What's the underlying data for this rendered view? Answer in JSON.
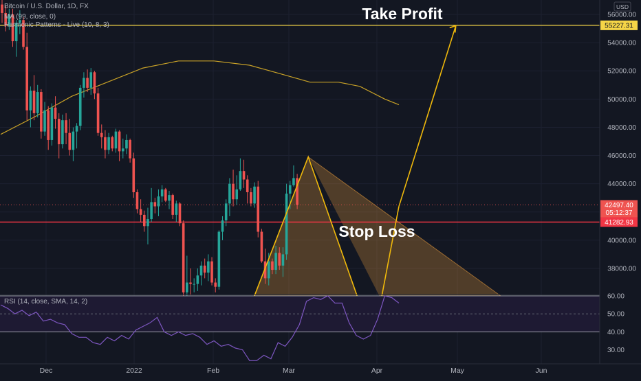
{
  "chart_data": {
    "type": "candlestick",
    "title": "Bitcoin / U.S. Dollar, 1D, FX",
    "indicators": [
      "MA (99, close, 0)",
      "Harmonic Patterns - Live (10, 8, 3)"
    ],
    "currency": "USD",
    "price_axis": {
      "ticks": [
        "56000.00",
        "54000.00",
        "52000.00",
        "50000.00",
        "48000.00",
        "46000.00",
        "44000.00",
        "42000.00",
        "40000.00",
        "38000.00"
      ],
      "range": [
        36200,
        57000
      ]
    },
    "time_axis": {
      "ticks": [
        "Dec",
        "2022",
        "Feb",
        "Mar",
        "Apr",
        "May",
        "Jun"
      ]
    },
    "price_labels": {
      "take_profit_value": "55227.31",
      "last_price": "42497.40",
      "countdown": "05:12:37",
      "stop_loss_value": "41282.93"
    },
    "levels": {
      "take_profit": 55227.31,
      "stop_loss": 41282.93,
      "last": 42497.4
    },
    "annotations": {
      "take_profit": "Take Profit",
      "stop_loss": "Stop Loss"
    },
    "candles": [
      [
        56700,
        57100,
        55400,
        56100
      ],
      [
        56100,
        56600,
        54800,
        55200
      ],
      [
        55200,
        56400,
        54900,
        56000
      ],
      [
        56000,
        56400,
        53700,
        54100
      ],
      [
        54100,
        55600,
        53000,
        55400
      ],
      [
        55400,
        56300,
        54600,
        55600
      ],
      [
        55600,
        55800,
        53500,
        53700
      ],
      [
        53700,
        54700,
        48500,
        49200
      ],
      [
        49200,
        50900,
        48000,
        50600
      ],
      [
        50600,
        51700,
        48500,
        49000
      ],
      [
        49000,
        51000,
        48700,
        50500
      ],
      [
        50500,
        50700,
        47200,
        47700
      ],
      [
        47700,
        49800,
        47400,
        49200
      ],
      [
        49200,
        49500,
        46400,
        47100
      ],
      [
        47100,
        49700,
        46700,
        49400
      ],
      [
        49400,
        50200,
        47900,
        48600
      ],
      [
        48600,
        49000,
        45800,
        46800
      ],
      [
        46800,
        48900,
        46500,
        48500
      ],
      [
        48500,
        49000,
        46800,
        47600
      ],
      [
        47600,
        48600,
        46000,
        46400
      ],
      [
        46400,
        48000,
        45600,
        47700
      ],
      [
        47700,
        48300,
        46500,
        48100
      ],
      [
        48100,
        51000,
        47800,
        50800
      ],
      [
        50800,
        51900,
        50100,
        51500
      ],
      [
        51500,
        52100,
        50500,
        50800
      ],
      [
        50800,
        52200,
        50300,
        51900
      ],
      [
        51900,
        52000,
        50000,
        50400
      ],
      [
        50400,
        50800,
        47400,
        47600
      ],
      [
        47600,
        48200,
        46500,
        47300
      ],
      [
        47300,
        47800,
        45800,
        46400
      ],
      [
        46400,
        47600,
        46100,
        47300
      ],
      [
        47300,
        47400,
        46300,
        46500
      ],
      [
        46500,
        47900,
        46200,
        47700
      ],
      [
        47700,
        47800,
        45600,
        46300
      ],
      [
        46300,
        47200,
        45800,
        46500
      ],
      [
        46500,
        47500,
        46100,
        47100
      ],
      [
        47100,
        47200,
        45500,
        45800
      ],
      [
        45800,
        46200,
        43000,
        43400
      ],
      [
        43400,
        43600,
        41900,
        42200
      ],
      [
        42200,
        42900,
        41300,
        41800
      ],
      [
        41800,
        42100,
        40600,
        41000
      ],
      [
        41000,
        42300,
        39700,
        41500
      ],
      [
        41500,
        43700,
        41300,
        42700
      ],
      [
        42700,
        43000,
        41900,
        42400
      ],
      [
        42400,
        43600,
        41700,
        43100
      ],
      [
        43100,
        43900,
        42700,
        43600
      ],
      [
        43600,
        43700,
        42700,
        42800
      ],
      [
        42800,
        43500,
        42200,
        43200
      ],
      [
        43200,
        43300,
        41500,
        41800
      ],
      [
        41800,
        42800,
        41300,
        42600
      ],
      [
        42600,
        42700,
        41000,
        41200
      ],
      [
        41200,
        41400,
        35700,
        36300
      ],
      [
        36300,
        38900,
        35800,
        37000
      ],
      [
        37000,
        38000,
        36100,
        36900
      ],
      [
        36900,
        37300,
        36300,
        36900
      ],
      [
        36900,
        38000,
        36400,
        37500
      ],
      [
        37500,
        38500,
        36800,
        38200
      ],
      [
        38200,
        38700,
        37300,
        37700
      ],
      [
        37700,
        39000,
        37100,
        38500
      ],
      [
        38500,
        38800,
        36800,
        37000
      ],
      [
        37000,
        37300,
        36300,
        36700
      ],
      [
        36700,
        40700,
        36500,
        40600
      ],
      [
        40600,
        41700,
        40000,
        41400
      ],
      [
        41400,
        42900,
        41000,
        42600
      ],
      [
        42600,
        44400,
        41700,
        44000
      ],
      [
        44000,
        45000,
        42400,
        42900
      ],
      [
        42900,
        44600,
        42500,
        43600
      ],
      [
        43600,
        45800,
        43500,
        44900
      ],
      [
        44900,
        45700,
        43700,
        44300
      ],
      [
        44300,
        44600,
        42600,
        43400
      ],
      [
        43400,
        43700,
        42400,
        42600
      ],
      [
        42600,
        44100,
        42300,
        43800
      ],
      [
        43800,
        44200,
        40200,
        40600
      ],
      [
        40600,
        40800,
        38400,
        38500
      ],
      [
        38500,
        39400,
        36900,
        37300
      ],
      [
        37300,
        39100,
        36800,
        38500
      ],
      [
        38500,
        38700,
        37600,
        37900
      ],
      [
        37900,
        39600,
        37600,
        39100
      ],
      [
        39100,
        39500,
        37900,
        38200
      ],
      [
        38200,
        39500,
        37400,
        39000
      ],
      [
        39000,
        44000,
        38600,
        43300
      ],
      [
        43300,
        44200,
        42200,
        43900
      ],
      [
        43900,
        45300,
        43800,
        44400
      ],
      [
        44400,
        44700,
        42200,
        42500
      ]
    ],
    "ma99": [
      [
        0,
        47500
      ],
      [
        10,
        48800
      ],
      [
        20,
        50200
      ],
      [
        30,
        51200
      ],
      [
        40,
        52200
      ],
      [
        50,
        52700
      ],
      [
        60,
        52700
      ],
      [
        70,
        52400
      ],
      [
        80,
        51700
      ],
      [
        87,
        51200
      ],
      [
        95,
        51200
      ],
      [
        101,
        50900
      ],
      [
        108,
        50000
      ],
      [
        112,
        49600
      ]
    ],
    "harmonic_pattern": {
      "points": [
        [
          70.5,
          35500
        ],
        [
          86.5,
          45900
        ],
        [
          101,
          35500
        ],
        [
          107,
          35800
        ],
        [
          112,
          42400
        ]
      ],
      "triangle_a": [
        [
          70.5,
          35500
        ],
        [
          86.5,
          45900
        ],
        [
          101,
          35500
        ]
      ],
      "triangle_b": [
        [
          86.5,
          45900
        ],
        [
          107,
          35800
        ],
        [
          142,
          35800
        ]
      ],
      "projection": [
        [
          112,
          42400
        ],
        [
          128,
          55200
        ]
      ]
    },
    "rsi": {
      "label": "RSI (14, close, SMA, 14, 2)",
      "ticks": [
        "60.00",
        "50.00",
        "40.00",
        "30.00"
      ],
      "upper": 60,
      "lower": 40,
      "middle": 50,
      "values": [
        [
          0,
          55
        ],
        [
          2,
          53
        ],
        [
          4,
          50
        ],
        [
          6,
          52
        ],
        [
          8,
          49
        ],
        [
          10,
          51
        ],
        [
          12,
          46
        ],
        [
          14,
          47
        ],
        [
          16,
          45
        ],
        [
          18,
          44
        ],
        [
          20,
          39
        ],
        [
          22,
          37
        ],
        [
          24,
          37
        ],
        [
          26,
          34
        ],
        [
          28,
          33
        ],
        [
          30,
          37
        ],
        [
          32,
          35
        ],
        [
          34,
          38
        ],
        [
          36,
          36
        ],
        [
          38,
          41
        ],
        [
          40,
          43
        ],
        [
          42,
          45
        ],
        [
          44,
          48
        ],
        [
          46,
          40
        ],
        [
          48,
          38
        ],
        [
          50,
          40
        ],
        [
          52,
          38
        ],
        [
          54,
          39
        ],
        [
          56,
          37
        ],
        [
          58,
          33
        ],
        [
          60,
          35
        ],
        [
          62,
          32
        ],
        [
          64,
          33
        ],
        [
          66,
          31
        ],
        [
          68,
          30
        ],
        [
          70,
          24
        ],
        [
          72,
          24
        ],
        [
          74,
          27
        ],
        [
          76,
          25
        ],
        [
          78,
          34
        ],
        [
          80,
          32
        ],
        [
          82,
          37
        ],
        [
          84,
          44
        ],
        [
          86,
          57
        ],
        [
          88,
          59
        ],
        [
          90,
          58
        ],
        [
          92,
          60
        ],
        [
          94,
          56
        ],
        [
          96,
          56
        ],
        [
          98,
          45
        ],
        [
          100,
          38
        ],
        [
          102,
          36
        ],
        [
          104,
          38
        ],
        [
          106,
          47
        ],
        [
          108,
          60
        ],
        [
          110,
          59
        ],
        [
          112,
          56
        ]
      ]
    },
    "colors": {
      "background": "#131722",
      "bull": "#26a69a",
      "bear": "#ef5350",
      "ma": "#c9a227",
      "pattern": "#f0b90b",
      "take_profit_line": "#f5d547",
      "stop_loss_line": "#f23645",
      "rsi_line": "#7e57c2",
      "rsi_band": "#1e1a33",
      "axis_text": "#b2b5be"
    }
  }
}
